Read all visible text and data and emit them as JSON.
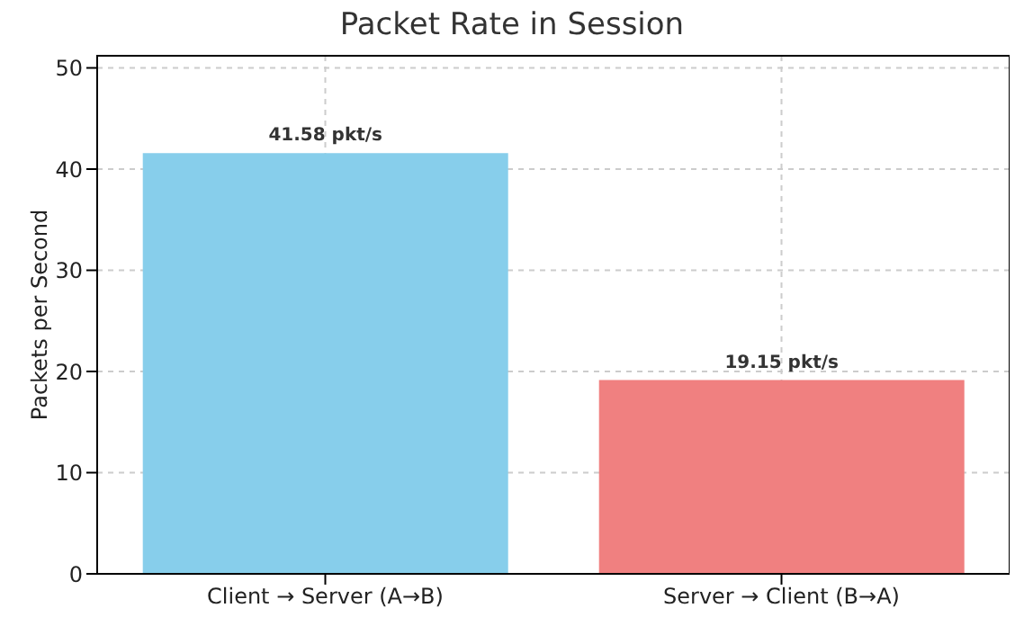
{
  "chart_data": {
    "type": "bar",
    "title": "Packet Rate in Session",
    "ylabel": "Packets per Second",
    "categories": [
      "Client → Server (A→B)",
      "Server → Client (B→A)"
    ],
    "values": [
      41.58,
      19.15
    ],
    "colors": [
      "#87ceeb",
      "#f08080"
    ],
    "value_labels": [
      "41.58 pkt/s",
      "19.15 pkt/s"
    ],
    "ylim": [
      0,
      51.2
    ],
    "yticks": [
      0,
      10,
      20,
      30,
      40,
      50
    ],
    "grid": true
  }
}
